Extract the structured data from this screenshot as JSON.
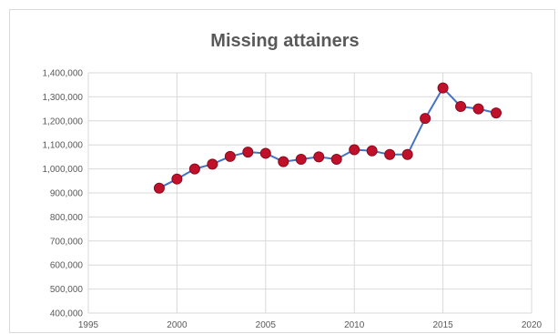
{
  "chart_data": {
    "type": "scatter",
    "title": "Missing attainers",
    "xlabel": "",
    "ylabel": "",
    "xlim": [
      1995,
      2020
    ],
    "ylim": [
      400000,
      1400000
    ],
    "x_ticks": [
      1995,
      2000,
      2005,
      2010,
      2015,
      2020
    ],
    "y_ticks": [
      400000,
      500000,
      600000,
      700000,
      800000,
      900000,
      1000000,
      1100000,
      1200000,
      1300000,
      1400000
    ],
    "x_tick_labels": [
      "1995",
      "2000",
      "2005",
      "2010",
      "2015",
      "2020"
    ],
    "y_tick_labels": [
      "400,000",
      "500,000",
      "600,000",
      "700,000",
      "800,000",
      "900,000",
      "1,000,000",
      "1,100,000",
      "1,200,000",
      "1,300,000",
      "1,400,000"
    ],
    "grid": true,
    "legend": "none",
    "series": [
      {
        "x": [
          1999,
          2000,
          2001,
          2002,
          2003,
          2004,
          2005,
          2006,
          2007,
          2008,
          2009,
          2010,
          2011,
          2012,
          2013,
          2014,
          2015,
          2016,
          2017,
          2018
        ],
        "y": [
          920000,
          958000,
          1000000,
          1020000,
          1052000,
          1070000,
          1065000,
          1030000,
          1040000,
          1050000,
          1040000,
          1080000,
          1075000,
          1060000,
          1060000,
          1210000,
          1337000,
          1260000,
          1250000,
          1233000
        ]
      }
    ],
    "colors": {
      "line": "#4472c4",
      "marker_fill": "#c0102a",
      "marker_stroke": "#8c0a1e",
      "grid": "#d9d9d9",
      "text": "#595959"
    }
  }
}
